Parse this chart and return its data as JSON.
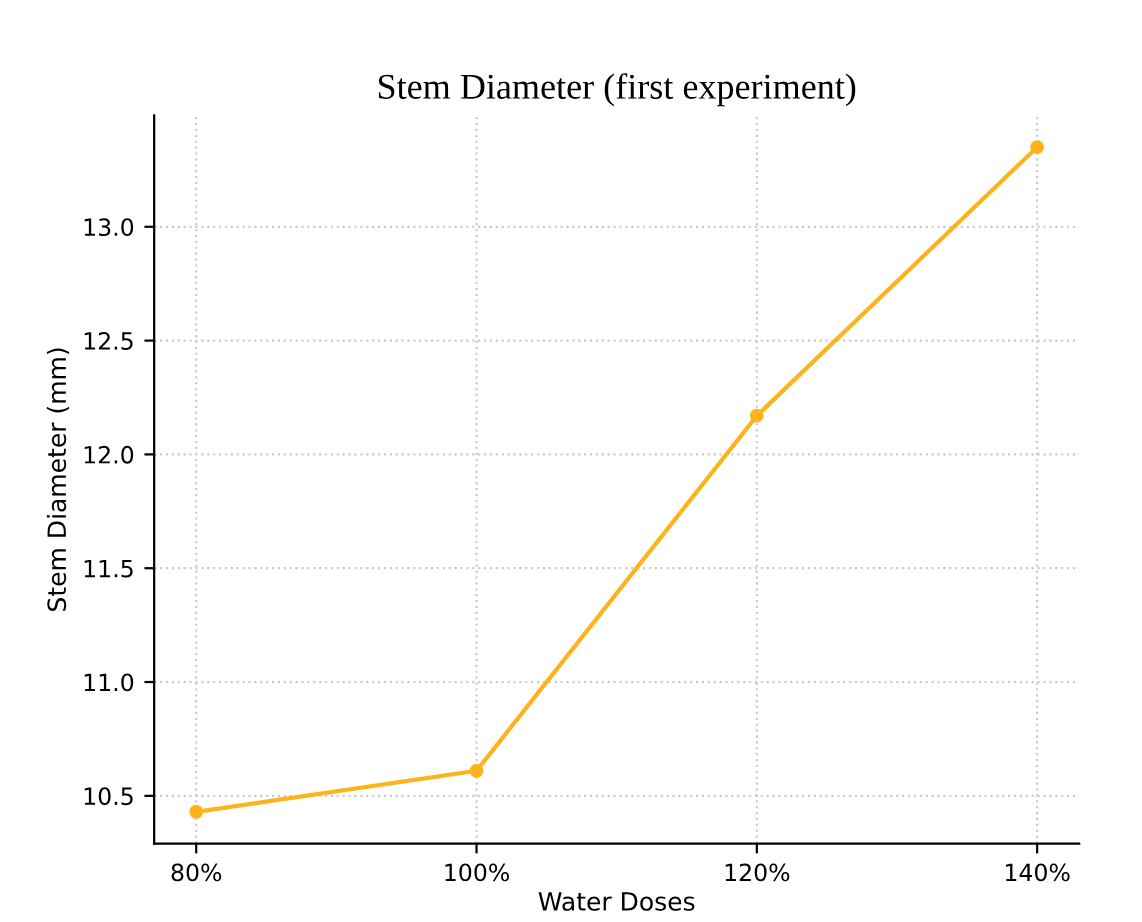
{
  "chart_data": {
    "type": "line",
    "title": "Stem Diameter (first experiment)",
    "xlabel": "Water Doses",
    "ylabel": "Stem Diameter (mm)",
    "categories": [
      "80%",
      "100%",
      "120%",
      "140%"
    ],
    "series": [
      {
        "color": "#ffb31a",
        "values": [
          10.43,
          10.61,
          12.17,
          13.35
        ]
      }
    ],
    "ylim": [
      10.29,
      13.49
    ],
    "yticks": [
      10.5,
      {
        "value": 11,
        "label": "11.0"
      },
      11.5,
      {
        "value": 12,
        "label": "12.0"
      },
      12.5,
      {
        "value": 13,
        "label": "13.0"
      }
    ],
    "grid": true,
    "marker": "circle",
    "line_style": "solid"
  }
}
